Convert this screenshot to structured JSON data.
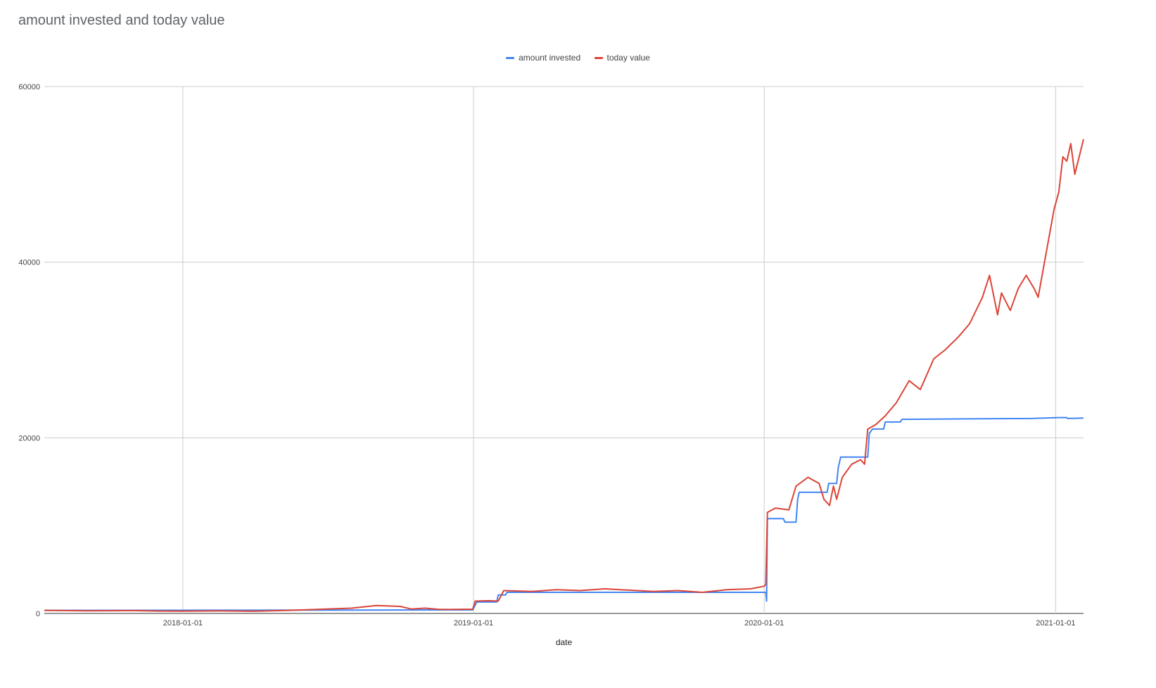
{
  "chart_data": {
    "type": "line",
    "title": "amount invested and today value",
    "xlabel": "date",
    "ylabel": "",
    "ylim": [
      0,
      60000
    ],
    "xlim": [
      "2017-07-11",
      "2021-02-05"
    ],
    "x_ticks": [
      "2018-01-01",
      "2019-01-01",
      "2020-01-01",
      "2021-01-01"
    ],
    "y_ticks": [
      0,
      20000,
      40000,
      60000
    ],
    "grid": true,
    "legend_position": "top",
    "series": [
      {
        "name": "amount invested",
        "color": "#4285f4",
        "points": [
          [
            "2017-07-11",
            350
          ],
          [
            "2017-10-01",
            350
          ],
          [
            "2018-06-01",
            380
          ],
          [
            "2018-12-31",
            400
          ],
          [
            "2019-01-05",
            1300
          ],
          [
            "2019-01-30",
            1300
          ],
          [
            "2019-02-01",
            2100
          ],
          [
            "2019-02-10",
            2100
          ],
          [
            "2019-02-12",
            2400
          ],
          [
            "2019-12-31",
            2400
          ],
          [
            "2020-01-03",
            2400
          ],
          [
            "2020-01-04",
            1400
          ],
          [
            "2020-01-05",
            10800
          ],
          [
            "2020-01-25",
            10800
          ],
          [
            "2020-01-27",
            10400
          ],
          [
            "2020-02-10",
            10400
          ],
          [
            "2020-02-12",
            13000
          ],
          [
            "2020-02-14",
            13800
          ],
          [
            "2020-03-20",
            13800
          ],
          [
            "2020-03-22",
            14800
          ],
          [
            "2020-04-01",
            14800
          ],
          [
            "2020-04-03",
            16600
          ],
          [
            "2020-04-06",
            17800
          ],
          [
            "2020-05-10",
            17800
          ],
          [
            "2020-05-12",
            20500
          ],
          [
            "2020-05-16",
            21000
          ],
          [
            "2020-05-30",
            21000
          ],
          [
            "2020-06-01",
            21800
          ],
          [
            "2020-06-20",
            21800
          ],
          [
            "2020-06-22",
            22100
          ],
          [
            "2020-09-01",
            22150
          ],
          [
            "2020-12-01",
            22200
          ],
          [
            "2021-01-05",
            22300
          ],
          [
            "2021-01-15",
            22300
          ],
          [
            "2021-01-16",
            22200
          ],
          [
            "2021-02-05",
            22250
          ]
        ]
      },
      {
        "name": "today value",
        "color": "#db4437",
        "points": [
          [
            "2017-07-11",
            350
          ],
          [
            "2017-09-01",
            300
          ],
          [
            "2017-11-01",
            320
          ],
          [
            "2017-12-01",
            270
          ],
          [
            "2018-01-01",
            260
          ],
          [
            "2018-02-15",
            290
          ],
          [
            "2018-04-01",
            250
          ],
          [
            "2018-05-15",
            350
          ],
          [
            "2018-07-01",
            500
          ],
          [
            "2018-08-01",
            600
          ],
          [
            "2018-09-01",
            900
          ],
          [
            "2018-10-01",
            800
          ],
          [
            "2018-10-15",
            500
          ],
          [
            "2018-11-01",
            600
          ],
          [
            "2018-11-20",
            450
          ],
          [
            "2018-12-31",
            480
          ],
          [
            "2019-01-03",
            1400
          ],
          [
            "2019-01-20",
            1450
          ],
          [
            "2019-02-01",
            1400
          ],
          [
            "2019-02-08",
            2600
          ],
          [
            "2019-03-15",
            2500
          ],
          [
            "2019-04-15",
            2700
          ],
          [
            "2019-05-15",
            2600
          ],
          [
            "2019-06-15",
            2800
          ],
          [
            "2019-07-15",
            2650
          ],
          [
            "2019-08-15",
            2500
          ],
          [
            "2019-09-15",
            2600
          ],
          [
            "2019-10-15",
            2400
          ],
          [
            "2019-11-15",
            2700
          ],
          [
            "2019-12-15",
            2800
          ],
          [
            "2020-01-01",
            3100
          ],
          [
            "2020-01-03",
            3300
          ],
          [
            "2020-01-05",
            11500
          ],
          [
            "2020-01-15",
            12000
          ],
          [
            "2020-02-01",
            11800
          ],
          [
            "2020-02-10",
            14500
          ],
          [
            "2020-02-25",
            15500
          ],
          [
            "2020-03-10",
            14800
          ],
          [
            "2020-03-16",
            13000
          ],
          [
            "2020-03-23",
            12300
          ],
          [
            "2020-03-28",
            14500
          ],
          [
            "2020-04-01",
            13000
          ],
          [
            "2020-04-08",
            15500
          ],
          [
            "2020-04-20",
            17000
          ],
          [
            "2020-05-01",
            17500
          ],
          [
            "2020-05-06",
            17000
          ],
          [
            "2020-05-10",
            21000
          ],
          [
            "2020-05-20",
            21500
          ],
          [
            "2020-06-01",
            22500
          ],
          [
            "2020-06-15",
            24000
          ],
          [
            "2020-07-01",
            26500
          ],
          [
            "2020-07-15",
            25500
          ],
          [
            "2020-08-01",
            29000
          ],
          [
            "2020-08-15",
            30000
          ],
          [
            "2020-09-01",
            31500
          ],
          [
            "2020-09-15",
            33000
          ],
          [
            "2020-10-01",
            36000
          ],
          [
            "2020-10-10",
            38500
          ],
          [
            "2020-10-20",
            34000
          ],
          [
            "2020-10-25",
            36500
          ],
          [
            "2020-11-05",
            34500
          ],
          [
            "2020-11-15",
            37000
          ],
          [
            "2020-11-25",
            38500
          ],
          [
            "2020-12-05",
            37000
          ],
          [
            "2020-12-10",
            36000
          ],
          [
            "2020-12-18",
            40000
          ],
          [
            "2020-12-30",
            46000
          ],
          [
            "2021-01-05",
            48000
          ],
          [
            "2021-01-10",
            52000
          ],
          [
            "2021-01-15",
            51500
          ],
          [
            "2021-01-20",
            53500
          ],
          [
            "2021-01-25",
            50000
          ],
          [
            "2021-02-05",
            54000
          ]
        ]
      }
    ]
  }
}
